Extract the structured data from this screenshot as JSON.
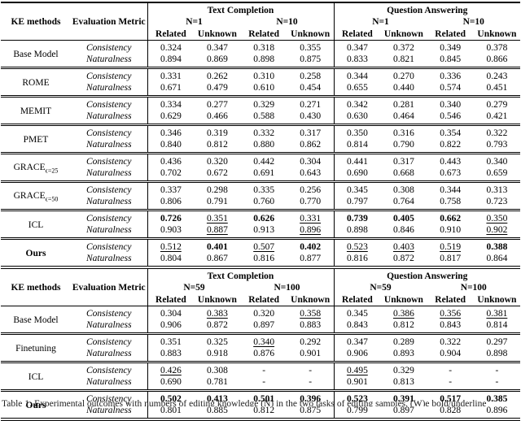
{
  "metric_labels": [
    "Consistency",
    "Naturalness"
  ],
  "tables": [
    {
      "headers": {
        "ke_methods": "KE methods",
        "eval_metric": "Evaluation Metric",
        "task_groups": [
          "Text Completion",
          "Question Answering"
        ],
        "n_groups": [
          "N=1",
          "N=10",
          "N=1",
          "N=10"
        ],
        "leaf": [
          "Related",
          "Unknown",
          "Related",
          "Unknown",
          "Related",
          "Unknown",
          "Related",
          "Unknown"
        ]
      },
      "rows": [
        {
          "method": "Base Model",
          "bold": false,
          "sub": "",
          "values": [
            [
              "0.324",
              "0.347",
              "0.318",
              "0.355",
              "0.347",
              "0.372",
              "0.349",
              "0.378"
            ],
            [
              "0.894",
              "0.869",
              "0.898",
              "0.875",
              "0.833",
              "0.821",
              "0.845",
              "0.866"
            ]
          ]
        },
        {
          "method": "ROME",
          "bold": false,
          "sub": "",
          "values": [
            [
              "0.331",
              "0.262",
              "0.310",
              "0.258",
              "0.344",
              "0.270",
              "0.336",
              "0.243"
            ],
            [
              "0.671",
              "0.479",
              "0.610",
              "0.454",
              "0.655",
              "0.440",
              "0.574",
              "0.451"
            ]
          ]
        },
        {
          "method": "MEMIT",
          "bold": false,
          "sub": "",
          "values": [
            [
              "0.334",
              "0.277",
              "0.329",
              "0.271",
              "0.342",
              "0.281",
              "0.340",
              "0.279"
            ],
            [
              "0.629",
              "0.466",
              "0.588",
              "0.430",
              "0.630",
              "0.464",
              "0.546",
              "0.421"
            ]
          ]
        },
        {
          "method": "PMET",
          "bold": false,
          "sub": "",
          "values": [
            [
              "0.346",
              "0.319",
              "0.332",
              "0.317",
              "0.350",
              "0.316",
              "0.354",
              "0.322"
            ],
            [
              "0.840",
              "0.812",
              "0.880",
              "0.862",
              "0.814",
              "0.790",
              "0.822",
              "0.793"
            ]
          ]
        },
        {
          "method": "GRACE",
          "bold": false,
          "sub": "ϵ=25",
          "values": [
            [
              "0.436",
              "0.320",
              "0.442",
              "0.304",
              "0.441",
              "0.317",
              "0.443",
              "0.340"
            ],
            [
              "0.702",
              "0.672",
              "0.691",
              "0.643",
              "0.690",
              "0.668",
              "0.673",
              "0.659"
            ]
          ]
        },
        {
          "method": "GRACE",
          "bold": false,
          "sub": "ϵ=50",
          "values": [
            [
              "0.337",
              "0.298",
              "0.335",
              "0.256",
              "0.345",
              "0.308",
              "0.344",
              "0.313"
            ],
            [
              "0.806",
              "0.791",
              "0.760",
              "0.770",
              "0.797",
              "0.764",
              "0.758",
              "0.723"
            ]
          ]
        },
        {
          "method": "ICL",
          "bold": false,
          "sub": "",
          "values": [
            [
              "b:0.726",
              "u:0.351",
              "b:0.626",
              "u:0.331",
              "b:0.739",
              "b:0.405",
              "b:0.662",
              "u:0.350"
            ],
            [
              "0.903",
              "u:0.887",
              "0.913",
              "u:0.896",
              "0.898",
              "0.846",
              "0.910",
              "u:0.902"
            ]
          ]
        },
        {
          "method": "Ours",
          "bold": true,
          "sub": "",
          "values": [
            [
              "u:0.512",
              "b:0.401",
              "u:0.507",
              "b:0.402",
              "u:0.523",
              "u:0.403",
              "u:0.519",
              "b:0.388"
            ],
            [
              "0.804",
              "0.867",
              "0.816",
              "0.877",
              "0.816",
              "0.872",
              "0.817",
              "0.864"
            ]
          ]
        }
      ]
    },
    {
      "headers": {
        "ke_methods": "KE methods",
        "eval_metric": "Evaluation Metric",
        "task_groups": [
          "Text Completion",
          "Question Answering"
        ],
        "n_groups": [
          "N=59",
          "N=100",
          "N=59",
          "N=100"
        ],
        "leaf": [
          "Related",
          "Unknown",
          "Related",
          "Unknown",
          "Related",
          "Unknown",
          "Related",
          "Unknown"
        ]
      },
      "rows": [
        {
          "method": "Base Model",
          "bold": false,
          "sub": "",
          "values": [
            [
              "0.304",
              "u:0.383",
              "0.320",
              "u:0.358",
              "0.345",
              "u:0.386",
              "u:0.356",
              "u:0.381"
            ],
            [
              "0.906",
              "0.872",
              "0.897",
              "0.883",
              "0.843",
              "0.812",
              "0.843",
              "0.814"
            ]
          ]
        },
        {
          "method": "Finetuning",
          "bold": false,
          "sub": "",
          "values": [
            [
              "0.351",
              "0.325",
              "u:0.340",
              "0.292",
              "0.347",
              "0.289",
              "0.322",
              "0.297"
            ],
            [
              "0.883",
              "0.918",
              "0.876",
              "0.901",
              "0.906",
              "0.893",
              "0.904",
              "0.898"
            ]
          ]
        },
        {
          "method": "ICL",
          "bold": false,
          "sub": "",
          "values": [
            [
              "u:0.426",
              "0.308",
              "-",
              "-",
              "u:0.495",
              "0.329",
              "-",
              "-"
            ],
            [
              "0.690",
              "0.781",
              "-",
              "-",
              "0.901",
              "0.813",
              "-",
              "-"
            ]
          ]
        },
        {
          "method": "Ours",
          "bold": true,
          "sub": "",
          "values": [
            [
              "b:0.502",
              "b:0.413",
              "b:0.501",
              "b:0.396",
              "b:0.523",
              "b:0.391",
              "b:0.517",
              "b:0.385"
            ],
            [
              "0.801",
              "0.885",
              "0.812",
              "0.875",
              "0.799",
              "0.897",
              "0.828",
              "0.896"
            ]
          ]
        }
      ]
    }
  ],
  "caption": {
    "text": "Table 1: Experimental outcomes with numbers of editing knowledge (N) in the two tasks of editing samples. (W)e bold/underline"
  }
}
